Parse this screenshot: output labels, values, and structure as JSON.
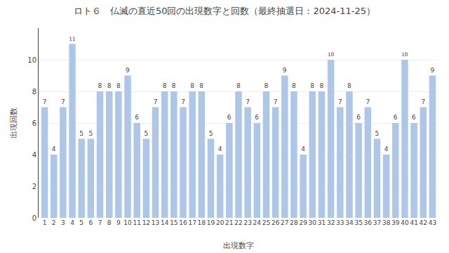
{
  "chart_data": {
    "type": "bar",
    "title": "ロト６　仏滅の直近50回の出現数字と回数（最終抽選日：2024-11-25）",
    "xlabel": "出現数字",
    "ylabel": "出現回数",
    "categories": [
      1,
      2,
      3,
      4,
      5,
      6,
      7,
      8,
      9,
      10,
      11,
      12,
      13,
      14,
      15,
      16,
      17,
      18,
      19,
      20,
      21,
      22,
      23,
      24,
      25,
      26,
      27,
      28,
      29,
      30,
      31,
      32,
      33,
      34,
      35,
      36,
      37,
      38,
      39,
      40,
      41,
      42,
      43
    ],
    "values": [
      7,
      4,
      7,
      11,
      5,
      5,
      8,
      8,
      8,
      9,
      6,
      5,
      7,
      8,
      8,
      7,
      8,
      8,
      5,
      4,
      6,
      8,
      7,
      6,
      8,
      7,
      9,
      8,
      4,
      8,
      8,
      10,
      7,
      8,
      6,
      7,
      5,
      4,
      6,
      10,
      6,
      7,
      9
    ],
    "color": "#aec6e8",
    "ylim": [
      0,
      12
    ],
    "yticks": [
      0,
      2,
      4,
      6,
      8,
      10
    ],
    "grid": true,
    "data_labels": true
  }
}
